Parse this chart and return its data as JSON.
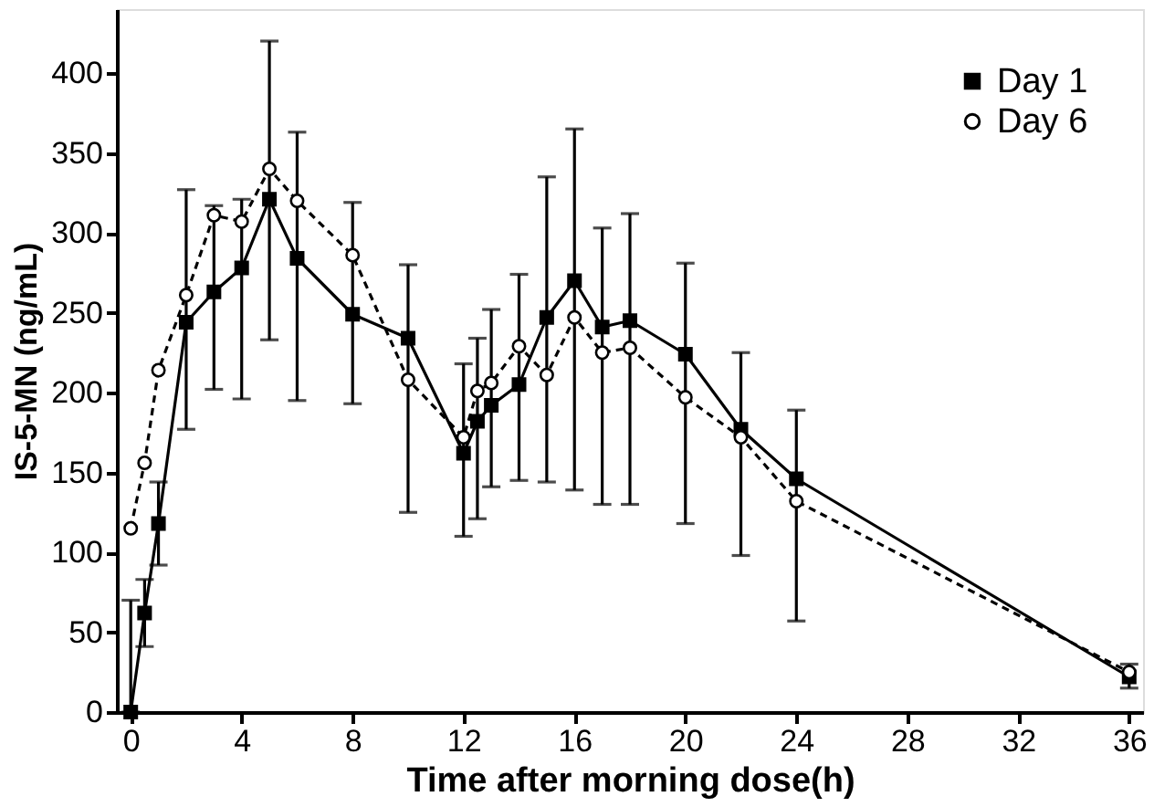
{
  "chart_data": {
    "type": "line",
    "xlabel": "Time after morning dose(h)",
    "ylabel": "IS-5-MN (ng/mL)",
    "xlim": [
      -0.5,
      36.5
    ],
    "xticks": [
      0,
      4,
      8,
      12,
      16,
      20,
      24,
      28,
      32,
      36
    ],
    "ylim": [
      0,
      440
    ],
    "yticks": [
      0,
      50,
      100,
      150,
      200,
      250,
      300,
      350,
      400
    ],
    "grid": false,
    "legend": "top right",
    "series": [
      {
        "name": "Day 1",
        "color": "#000000",
        "marker": "square",
        "line_style": "solid",
        "x": [
          0,
          0.5,
          1,
          2,
          3,
          4,
          5,
          6,
          8,
          10,
          12,
          12.5,
          13,
          14,
          15,
          16,
          17,
          18,
          20,
          22,
          24,
          36
        ],
        "values": [
          0,
          62,
          118,
          244,
          263,
          278,
          321,
          284,
          249,
          234,
          162,
          182,
          192,
          205,
          247,
          270,
          241,
          245,
          224,
          177,
          146,
          22
        ],
        "errors": [
          [
            0,
            70
          ],
          [
            41,
            83
          ],
          [
            92,
            144
          ],
          [
            177,
            327
          ],
          [
            202,
            317
          ],
          [
            196,
            321
          ],
          [
            233,
            420
          ],
          [
            195,
            363
          ],
          [
            193,
            319
          ],
          [
            125,
            280
          ],
          [
            110,
            218
          ],
          [
            121,
            234
          ],
          [
            141,
            252
          ],
          [
            145,
            274
          ],
          [
            144,
            335
          ],
          [
            139,
            365
          ],
          [
            130,
            303
          ],
          [
            130,
            312
          ],
          [
            118,
            281
          ],
          [
            98,
            225
          ],
          [
            57,
            189
          ],
          [
            15,
            30
          ]
        ]
      },
      {
        "name": "Day 6",
        "color": "#000000",
        "marker": "circle",
        "line_style": "dashed",
        "x": [
          0,
          0.5,
          1,
          2,
          3,
          4,
          5,
          6,
          8,
          10,
          12,
          12.5,
          13,
          14,
          15,
          16,
          17,
          18,
          20,
          22,
          24,
          36
        ],
        "values": [
          115,
          156,
          214,
          261,
          311,
          307,
          340,
          320,
          286,
          208,
          172,
          201,
          206,
          229,
          211,
          247,
          225,
          228,
          197,
          172,
          132,
          25
        ]
      }
    ]
  }
}
